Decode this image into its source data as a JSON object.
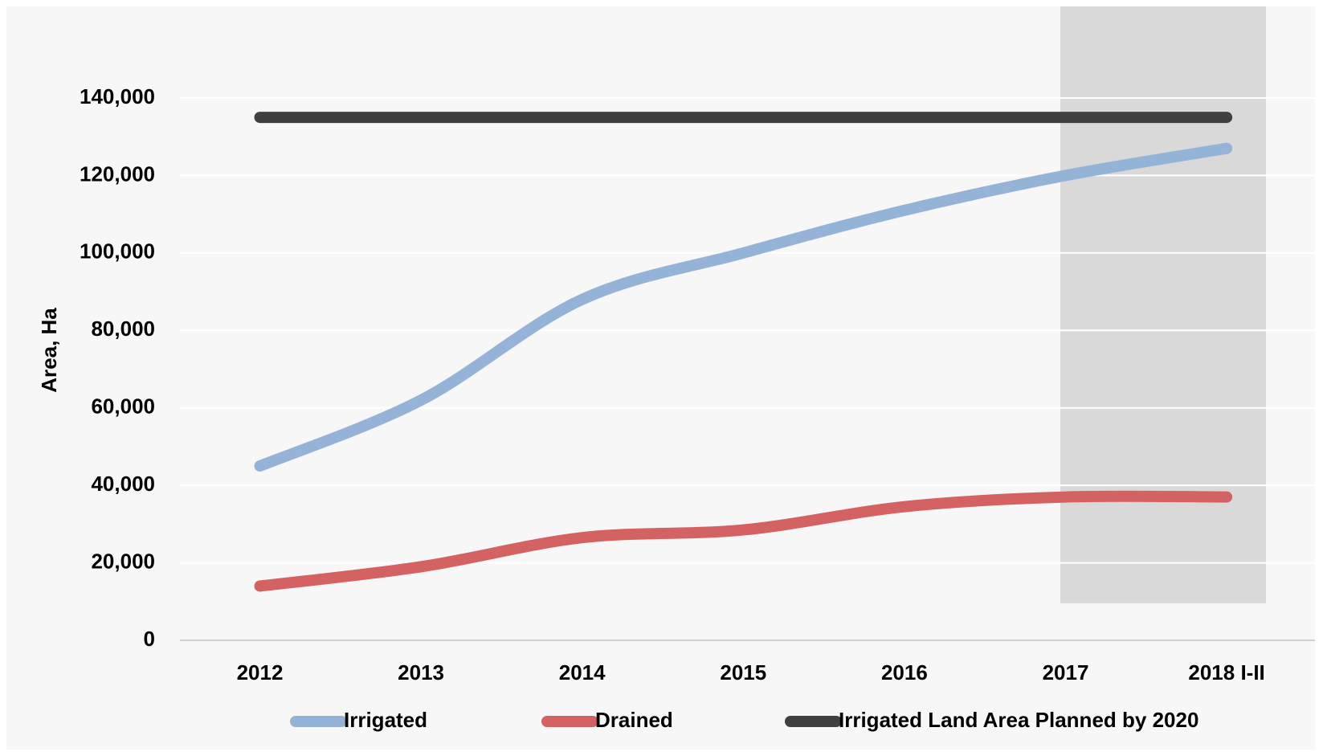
{
  "chart_data": {
    "type": "line",
    "y_axis_label": "Area, Ha",
    "categories": [
      "2012",
      "2013",
      "2014",
      "2015",
      "2016",
      "2017",
      "2018 I-II"
    ],
    "series": [
      {
        "name": "Irrigated",
        "color": "#95b3d7",
        "values": [
          45000,
          62000,
          88000,
          100000,
          111000,
          120000,
          127000
        ]
      },
      {
        "name": "Drained",
        "color": "#d46262",
        "values": [
          14000,
          19000,
          26500,
          28500,
          34500,
          37000,
          37000
        ]
      },
      {
        "name": "Irrigated Land Area Planned by 2020",
        "color": "#404040",
        "values": [
          135000,
          135000,
          135000,
          135000,
          135000,
          135000,
          135000
        ]
      }
    ],
    "ylim": [
      0,
      140000
    ],
    "yticks": [
      0,
      {
        "value": 20000,
        "label": "20,000"
      },
      {
        "value": 40000,
        "label": "40,000"
      },
      {
        "value": 60000,
        "label": "60,000"
      },
      {
        "value": 80000,
        "label": "80,000"
      },
      {
        "value": 100000,
        "label": "100,000"
      },
      {
        "value": 120000,
        "label": "120,000"
      },
      {
        "value": 140000,
        "label": "140,000"
      }
    ],
    "grid": true
  }
}
